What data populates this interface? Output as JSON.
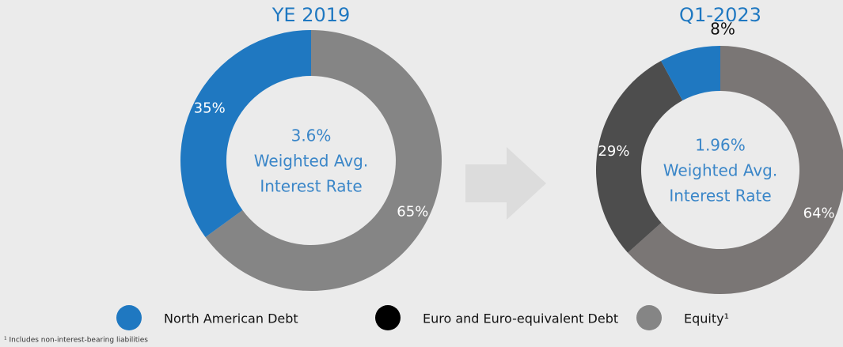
{
  "chart_data": [
    {
      "type": "pie",
      "title": "YE 2019",
      "values": [
        65,
        35
      ],
      "value_labels": [
        "65%",
        "35%"
      ],
      "colors": [
        "#858585",
        "#1f78c1"
      ],
      "center_text": [
        "3.6%",
        "Weighted Avg.",
        "Interest Rate"
      ]
    },
    {
      "type": "pie",
      "title": "Q1-2023",
      "values": [
        64,
        29,
        8
      ],
      "value_labels": [
        "64%",
        "29%",
        "8%"
      ],
      "colors": [
        "#7a7675",
        "#4d4d4d",
        "#1f78c1"
      ],
      "center_text": [
        "1.96%",
        "Weighted Avg.",
        "Interest Rate"
      ]
    }
  ],
  "legend": [
    {
      "name": "North American Debt",
      "color": "#1f78c1"
    },
    {
      "name": "Euro and Euro-equivalent Debt",
      "color": "#000000"
    },
    {
      "name": "Equity¹",
      "color": "#858585"
    }
  ],
  "footnote": "¹ Includes non-interest-bearing liabilities"
}
